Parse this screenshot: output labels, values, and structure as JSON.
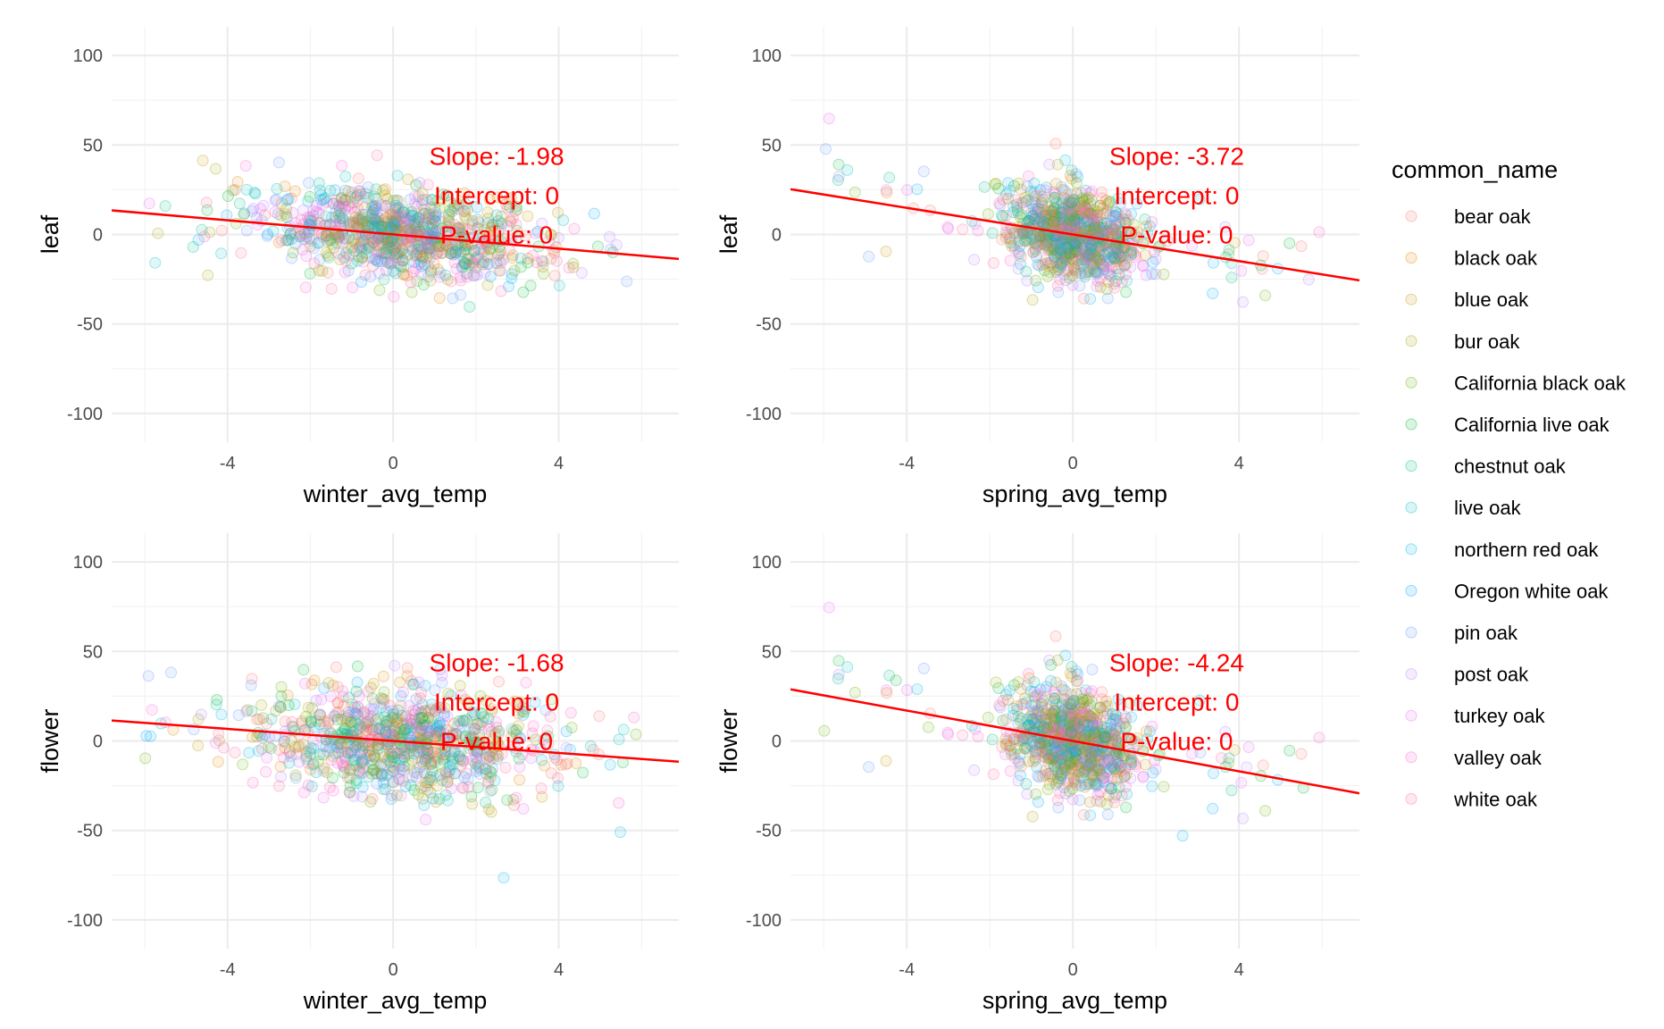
{
  "legend": {
    "title": "common_name",
    "items": [
      {
        "label": "bear oak",
        "color": "#F8766D"
      },
      {
        "label": "black oak",
        "color": "#E58700"
      },
      {
        "label": "blue oak",
        "color": "#C99800"
      },
      {
        "label": "bur oak",
        "color": "#A3A500"
      },
      {
        "label": "California black oak",
        "color": "#6BB100"
      },
      {
        "label": "California live oak",
        "color": "#00BA38"
      },
      {
        "label": "chestnut oak",
        "color": "#00C08B"
      },
      {
        "label": "live oak",
        "color": "#00BFC4"
      },
      {
        "label": "northern red oak",
        "color": "#00B4F0"
      },
      {
        "label": "Oregon white oak",
        "color": "#00A9FF"
      },
      {
        "label": "pin oak",
        "color": "#619CFF"
      },
      {
        "label": "post oak",
        "color": "#B983FF"
      },
      {
        "label": "turkey oak",
        "color": "#E76BF3"
      },
      {
        "label": "valley oak",
        "color": "#FD61D1"
      },
      {
        "label": "white oak",
        "color": "#FF67A4"
      }
    ]
  },
  "chart_data": [
    {
      "type": "scatter",
      "xlabel": "winter_avg_temp",
      "ylabel": "leaf",
      "xlim": [
        -6.8,
        6.9
      ],
      "ylim": [
        -116,
        116
      ],
      "xticks": [
        "-4",
        "0",
        "4"
      ],
      "yticks": [
        "100",
        "50",
        "0",
        "-50",
        "-100"
      ],
      "grid": true,
      "point_opacity": 0.12,
      "x_center": 0.2,
      "x_spread": 1.6,
      "y_spread": 13,
      "regression": {
        "slope": -1.98,
        "intercept": 0,
        "color": "#ff0000"
      },
      "annotations": [
        "Slope: -1.98",
        "Intercept: 0",
        "P-value: 0"
      ]
    },
    {
      "type": "scatter",
      "xlabel": "spring_avg_temp",
      "ylabel": "leaf",
      "xlim": [
        -6.8,
        6.9
      ],
      "ylim": [
        -116,
        116
      ],
      "xticks": [
        "-4",
        "0",
        "4"
      ],
      "yticks": [
        "100",
        "50",
        "0",
        "-50",
        "-100"
      ],
      "grid": true,
      "point_opacity": 0.12,
      "x_center": 0.0,
      "x_spread": 0.8,
      "y_spread": 13,
      "regression": {
        "slope": -3.72,
        "intercept": 0,
        "color": "#ff0000"
      },
      "annotations": [
        "Slope: -3.72",
        "Intercept: 0",
        "P-value: 0"
      ]
    },
    {
      "type": "scatter",
      "xlabel": "winter_avg_temp",
      "ylabel": "flower",
      "xlim": [
        -6.8,
        6.9
      ],
      "ylim": [
        -116,
        116
      ],
      "xticks": [
        "-4",
        "0",
        "4"
      ],
      "yticks": [
        "100",
        "50",
        "0",
        "-50",
        "-100"
      ],
      "grid": true,
      "point_opacity": 0.12,
      "x_center": 0.2,
      "x_spread": 1.6,
      "y_spread": 15,
      "regression": {
        "slope": -1.68,
        "intercept": 0,
        "color": "#ff0000"
      },
      "annotations": [
        "Slope: -1.68",
        "Intercept: 0",
        "P-value: 0"
      ]
    },
    {
      "type": "scatter",
      "xlabel": "spring_avg_temp",
      "ylabel": "flower",
      "xlim": [
        -6.8,
        6.9
      ],
      "ylim": [
        -116,
        116
      ],
      "xticks": [
        "-4",
        "0",
        "4"
      ],
      "yticks": [
        "100",
        "50",
        "0",
        "-50",
        "-100"
      ],
      "grid": true,
      "point_opacity": 0.12,
      "x_center": 0.0,
      "x_spread": 0.8,
      "y_spread": 15,
      "regression": {
        "slope": -4.24,
        "intercept": 0,
        "color": "#ff0000"
      },
      "annotations": [
        "Slope: -4.24",
        "Intercept: 0",
        "P-value: 0"
      ]
    }
  ]
}
